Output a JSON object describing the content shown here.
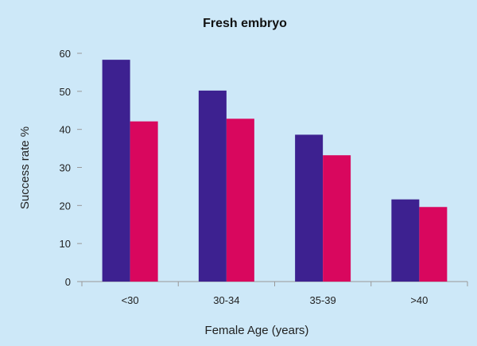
{
  "chart_data": {
    "type": "bar",
    "title": "Fresh embryo",
    "xlabel": "Female Age (years)",
    "ylabel": "Success rate %",
    "categories": [
      "<30",
      "30-34",
      "35-39",
      ">40"
    ],
    "series": [
      {
        "color": "#3d2190",
        "values": [
          58.3,
          50.2,
          38.6,
          21.6
        ]
      },
      {
        "color": "#d9075e",
        "values": [
          42.1,
          42.8,
          33.2,
          19.6
        ]
      }
    ],
    "ylim": [
      0,
      60
    ],
    "yticks": [
      0,
      10,
      20,
      30,
      40,
      50,
      60
    ],
    "grid": false,
    "legend": "none"
  },
  "colors": {
    "background": "#cde8f8",
    "axis": "#999999"
  }
}
